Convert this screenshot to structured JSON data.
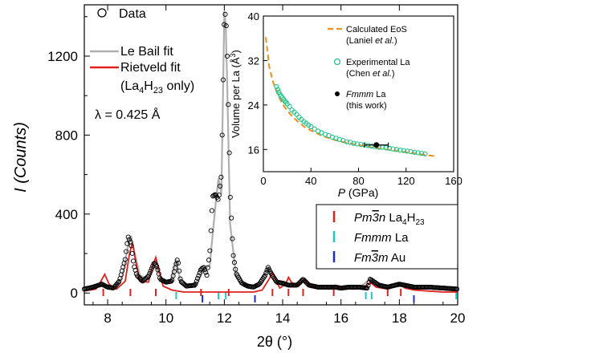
{
  "chart_data": [
    {
      "type": "line",
      "xlabel": "2θ (°)",
      "ylabel": "I (Counts)",
      "xlim": [
        7.2,
        20
      ],
      "ylim": [
        -60,
        1460
      ],
      "xticks": [
        "8",
        "10",
        "12",
        "14",
        "16",
        "18",
        "20"
      ],
      "yticks": [
        "0",
        "400",
        "800",
        "1200"
      ],
      "annotation": "λ = 0.425 Å",
      "legend_main": [
        {
          "label": "Data",
          "style": "open-circle"
        },
        {
          "label": "Le Bail fit",
          "color": "#b0b0b0"
        },
        {
          "label": "Rietveld fit",
          "color": "#e0201b"
        },
        {
          "label": "(La4H23 only)"
        }
      ],
      "legend_phases": [
        {
          "label": "Pm3̄n La4H23",
          "color": "#e0201b"
        },
        {
          "label": "Fmmm La",
          "color": "#20c4c4"
        },
        {
          "label": "Fm3̄m Au",
          "color": "#1a2bd1"
        }
      ],
      "series": [
        {
          "name": "Data",
          "x": [
            7.2,
            7.5,
            7.8,
            8.0,
            8.2,
            8.4,
            8.6,
            8.7,
            8.8,
            8.9,
            9.0,
            9.2,
            9.4,
            9.6,
            9.7,
            9.8,
            10.0,
            10.2,
            10.3,
            10.4,
            10.5,
            10.7,
            11.0,
            11.2,
            11.3,
            11.4,
            11.5,
            11.6,
            11.7,
            11.8,
            11.9,
            12.0,
            12.05,
            12.1,
            12.2,
            12.3,
            12.4,
            12.6,
            12.8,
            13.0,
            13.2,
            13.4,
            13.5,
            13.6,
            13.8,
            14.0,
            14.2,
            14.5,
            14.7,
            14.9,
            15.2,
            15.5,
            15.8,
            16.0,
            16.3,
            16.6,
            16.9,
            17.0,
            17.3,
            17.6,
            18.0,
            18.5,
            19.0,
            19.5,
            20.0
          ],
          "y": [
            20,
            30,
            45,
            30,
            25,
            60,
            170,
            285,
            250,
            140,
            90,
            60,
            85,
            155,
            130,
            70,
            55,
            60,
            120,
            175,
            60,
            35,
            40,
            120,
            130,
            90,
            200,
            490,
            500,
            470,
            600,
            1400,
            1420,
            1200,
            500,
            200,
            100,
            50,
            35,
            30,
            45,
            90,
            130,
            100,
            55,
            50,
            40,
            40,
            70,
            40,
            30,
            30,
            30,
            25,
            30,
            30,
            25,
            70,
            40,
            30,
            45,
            30,
            30,
            25,
            20
          ]
        },
        {
          "name": "Le Bail fit",
          "x": [
            7.2,
            7.6,
            7.9,
            8.2,
            8.5,
            8.7,
            8.8,
            8.9,
            9.1,
            9.4,
            9.6,
            9.7,
            9.9,
            10.2,
            10.35,
            10.5,
            11.0,
            11.3,
            11.5,
            11.7,
            11.8,
            11.9,
            12.0,
            12.05,
            12.1,
            12.2,
            12.4,
            12.7,
            13.2,
            13.5,
            13.7,
            14.0,
            14.4,
            14.7,
            15.0,
            15.7,
            16.3,
            16.7,
            17.0,
            17.3,
            17.8,
            18.2,
            18.5,
            19.0,
            19.5,
            20.0
          ],
          "y": [
            15,
            30,
            40,
            25,
            80,
            240,
            290,
            220,
            90,
            70,
            150,
            120,
            55,
            60,
            170,
            50,
            30,
            120,
            140,
            450,
            580,
            500,
            1430,
            1350,
            1050,
            350,
            90,
            40,
            35,
            130,
            70,
            45,
            40,
            60,
            35,
            30,
            30,
            35,
            70,
            35,
            30,
            40,
            30,
            25,
            25,
            20
          ]
        },
        {
          "name": "Rietveld fit",
          "x": [
            7.2,
            7.6,
            7.75,
            7.9,
            8.05,
            8.3,
            8.6,
            8.75,
            8.85,
            8.95,
            9.1,
            9.4,
            9.55,
            9.65,
            9.75,
            9.9,
            10.2,
            10.6,
            11.0,
            11.5,
            12.0,
            12.5,
            13.0,
            13.3,
            13.55,
            13.65,
            13.75,
            13.9,
            14.1,
            14.2,
            14.3,
            14.5,
            14.65,
            14.75,
            14.9,
            15.2,
            15.6,
            15.8,
            16.0,
            16.4,
            16.8,
            17.0,
            17.2,
            17.6,
            17.9,
            18.0,
            18.2,
            18.5,
            19.0,
            19.5,
            20.0
          ],
          "y": [
            10,
            20,
            55,
            95,
            45,
            20,
            60,
            200,
            255,
            170,
            60,
            55,
            140,
            180,
            120,
            35,
            15,
            5,
            5,
            5,
            5,
            5,
            5,
            15,
            75,
            105,
            70,
            25,
            45,
            80,
            55,
            35,
            55,
            70,
            40,
            25,
            20,
            40,
            25,
            20,
            25,
            55,
            30,
            20,
            35,
            45,
            25,
            15,
            10,
            5,
            5
          ]
        }
      ],
      "tick_marks": [
        {
          "phase": "La4H23",
          "color": "#e0201b",
          "x": [
            7.85,
            8.78,
            9.65,
            11.2,
            12.15,
            13.65,
            14.2,
            14.7,
            15.75,
            17.6,
            18.05
          ]
        },
        {
          "phase": "Fmmm La",
          "color": "#20c4c4",
          "x": [
            10.35,
            11.8,
            12.05,
            16.85,
            17.05,
            19.95
          ]
        },
        {
          "phase": "Au",
          "color": "#1a2bd1",
          "x": [
            11.25,
            13.05,
            18.5
          ]
        }
      ]
    },
    {
      "type": "scatter",
      "xlabel": "P (GPa)",
      "ylabel": "Volume per La (Å3)",
      "xlim": [
        0,
        160
      ],
      "ylim": [
        12,
        40
      ],
      "xticks": [
        "0",
        "40",
        "80",
        "120",
        "160"
      ],
      "yticks": [
        "16",
        "24",
        "32",
        "40"
      ],
      "legend": [
        {
          "label": "Calculated EoS",
          "label2": "(Laniel et al.)",
          "color": "#f0901e",
          "style": "dashed"
        },
        {
          "label": "Experimental La",
          "label2": "(Chen et al.)",
          "color": "#22c48a",
          "style": "open-circle"
        },
        {
          "label": "Fmmm La",
          "label2": "(this work)",
          "color": "#000000",
          "style": "filled-circle"
        }
      ],
      "series": [
        {
          "name": "Calculated EoS",
          "x": [
            2,
            5,
            8,
            12,
            16,
            20,
            25,
            30,
            35,
            40,
            50,
            60,
            70,
            80,
            90,
            100,
            110,
            120,
            130,
            140,
            145
          ],
          "y": [
            36.2,
            30.8,
            28.2,
            25.9,
            24.2,
            23.0,
            21.8,
            20.8,
            20.0,
            19.4,
            18.4,
            17.7,
            17.2,
            16.8,
            16.4,
            16.1,
            15.8,
            15.5,
            15.2,
            14.9,
            14.8
          ]
        },
        {
          "name": "Experimental La",
          "x": [
            11,
            12,
            13,
            14,
            15,
            16,
            17,
            18,
            19,
            20,
            22,
            24,
            26,
            28,
            30,
            32,
            34,
            36,
            38,
            40,
            43,
            46,
            49,
            52,
            55,
            58,
            61,
            64,
            67,
            70,
            73,
            76,
            79,
            82,
            85,
            88,
            91,
            94,
            97,
            100,
            103,
            106,
            109,
            112,
            115,
            118,
            121,
            124,
            127,
            130,
            133,
            136
          ],
          "y": [
            27.3,
            26.8,
            26.3,
            25.9,
            25.6,
            25.3,
            25.0,
            24.7,
            24.5,
            24.2,
            23.7,
            23.1,
            22.7,
            22.3,
            21.8,
            21.4,
            21.0,
            20.7,
            20.4,
            20.1,
            19.7,
            19.3,
            19.0,
            18.7,
            18.5,
            18.2,
            18.0,
            17.8,
            17.6,
            17.4,
            17.3,
            17.1,
            17.0,
            16.9,
            16.8,
            16.7,
            16.6,
            16.5,
            16.4,
            16.4,
            16.3,
            16.2,
            16.1,
            16.0,
            15.9,
            15.8,
            15.7,
            15.6,
            15.5,
            15.4,
            15.3,
            15.2
          ]
        },
        {
          "name": "Fmmm La",
          "x": [
            95
          ],
          "y": [
            16.8
          ],
          "xerr": [
            10
          ]
        }
      ]
    }
  ]
}
